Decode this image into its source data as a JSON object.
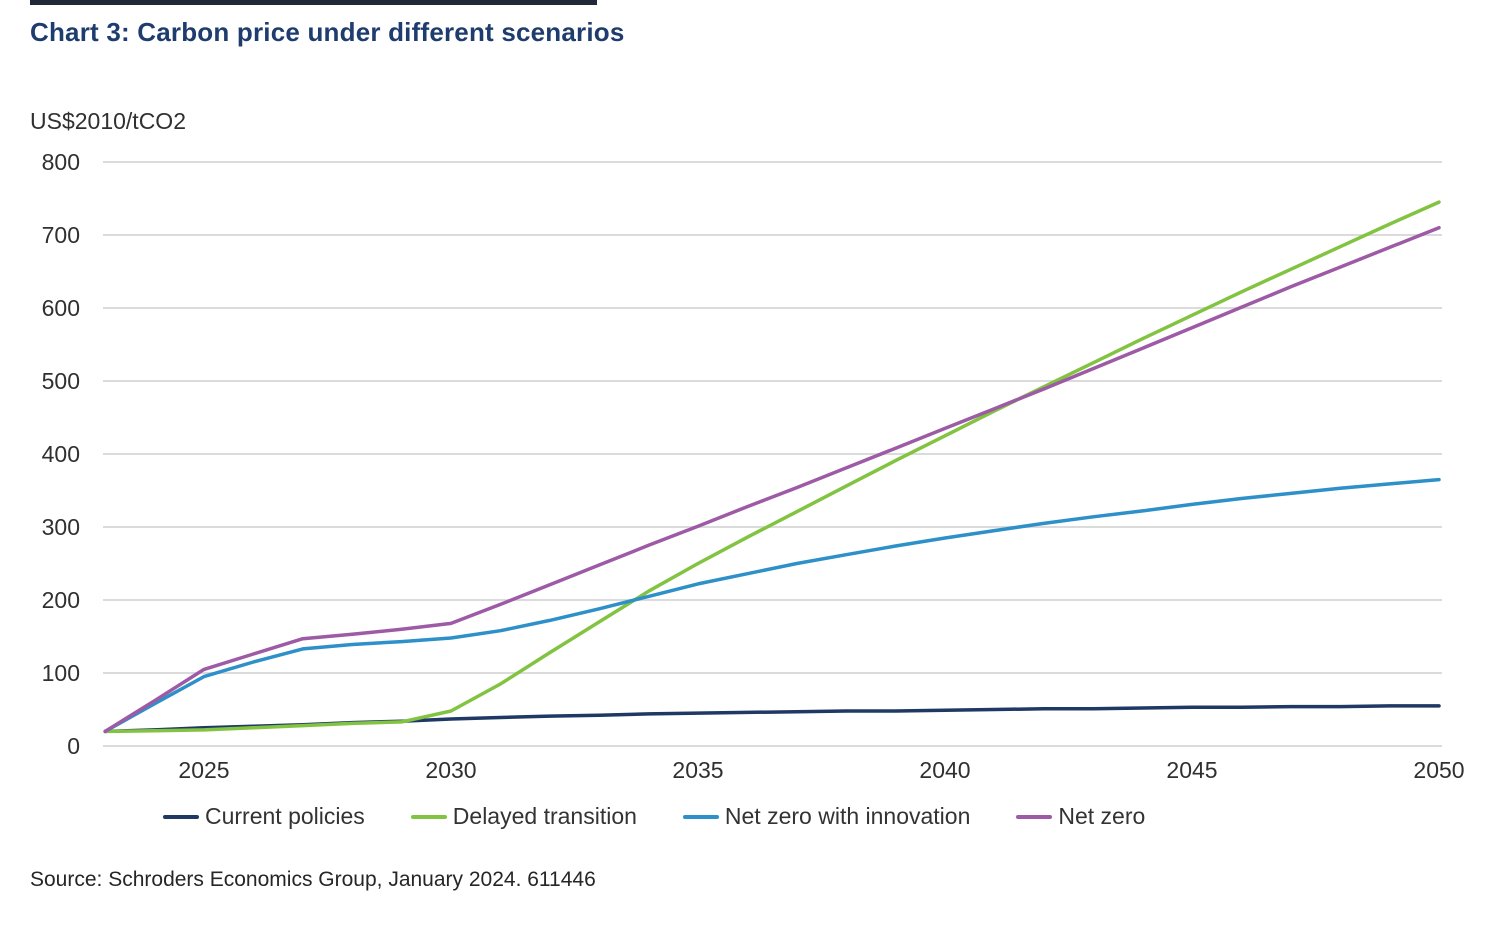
{
  "title": "Chart 3: Carbon price under different scenarios",
  "source": "Source: Schroders Economics Group, January 2024. 611446",
  "colors": {
    "title": "#1f3c6e",
    "gridline": "#dbdbdb",
    "axis_text": "#303030",
    "top_bar": "#20293a"
  },
  "chart_data": {
    "type": "line",
    "title": "Chart 3: Carbon price under different scenarios",
    "unit_label": "US$2010/tCO2",
    "xlabel": "",
    "ylabel": "US$2010/tCO2",
    "ylim": [
      0,
      800
    ],
    "xlim": [
      2023,
      2050
    ],
    "y_ticks": [
      0,
      100,
      200,
      300,
      400,
      500,
      600,
      700,
      800
    ],
    "x_ticks": [
      2025,
      2030,
      2035,
      2040,
      2045,
      2050
    ],
    "grid": "horizontal",
    "legend_position": "bottom",
    "x": [
      2023,
      2024,
      2025,
      2026,
      2027,
      2028,
      2029,
      2030,
      2031,
      2032,
      2033,
      2034,
      2035,
      2036,
      2037,
      2038,
      2039,
      2040,
      2041,
      2042,
      2043,
      2044,
      2045,
      2046,
      2047,
      2048,
      2049,
      2050
    ],
    "series": [
      {
        "name": "Current policies",
        "color": "#1f3864",
        "values": [
          20,
          22,
          25,
          27,
          29,
          32,
          34,
          37,
          39,
          41,
          42,
          44,
          45,
          46,
          47,
          48,
          48,
          49,
          50,
          51,
          51,
          52,
          53,
          53,
          54,
          54,
          55,
          55
        ]
      },
      {
        "name": "Delayed transition",
        "color": "#82c341",
        "values": [
          20,
          21,
          22,
          25,
          28,
          31,
          33,
          48,
          85,
          128,
          170,
          212,
          250,
          286,
          321,
          356,
          391,
          425,
          459,
          492,
          525,
          558,
          590,
          622,
          653,
          684,
          715,
          745
        ]
      },
      {
        "name": "Net zero with innovation",
        "color": "#2e90c8",
        "values": [
          20,
          58,
          95,
          115,
          133,
          139,
          143,
          148,
          158,
          172,
          188,
          205,
          222,
          236,
          250,
          262,
          274,
          285,
          295,
          305,
          314,
          322,
          331,
          339,
          346,
          353,
          359,
          365
        ]
      },
      {
        "name": "Net zero",
        "color": "#9d5ba5",
        "values": [
          20,
          62,
          105,
          126,
          147,
          153,
          160,
          168,
          194,
          221,
          248,
          275,
          301,
          328,
          354,
          381,
          408,
          435,
          462,
          489,
          517,
          545,
          573,
          601,
          629,
          656,
          683,
          710
        ]
      }
    ]
  }
}
